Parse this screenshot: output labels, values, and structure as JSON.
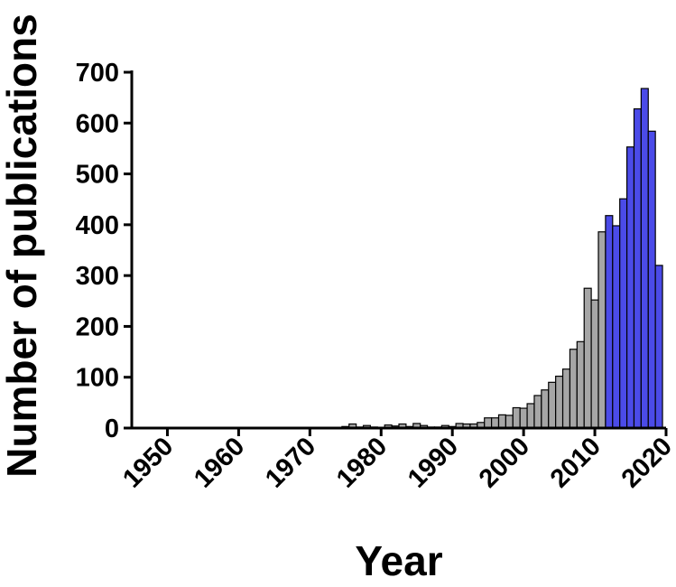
{
  "chart_data": {
    "type": "bar",
    "xlabel": "Year",
    "ylabel": "Number of publications",
    "xlim": [
      1945,
      2020
    ],
    "ylim": [
      0,
      700
    ],
    "x_ticks": [
      "1950",
      "1960",
      "1970",
      "1980",
      "1990",
      "2000",
      "2010",
      "2020"
    ],
    "y_ticks": [
      "0",
      "100",
      "200",
      "300",
      "400",
      "500",
      "600",
      "700"
    ],
    "grid": false,
    "legend": "none",
    "colors": {
      "gray": "#a6a6a6",
      "blue": "#4b4be8",
      "outline": "#000000"
    },
    "highlight_from_year": 2012,
    "x": [
      1975,
      1976,
      1977,
      1978,
      1979,
      1980,
      1981,
      1982,
      1983,
      1984,
      1985,
      1986,
      1987,
      1988,
      1989,
      1990,
      1991,
      1992,
      1993,
      1994,
      1995,
      1996,
      1997,
      1998,
      1999,
      2000,
      2001,
      2002,
      2003,
      2004,
      2005,
      2006,
      2007,
      2008,
      2009,
      2010,
      2011,
      2012,
      2013,
      2014,
      2015,
      2016,
      2017,
      2018,
      2019
    ],
    "values": [
      3,
      8,
      2,
      5,
      2,
      1,
      6,
      4,
      8,
      3,
      9,
      5,
      2,
      2,
      5,
      3,
      9,
      8,
      8,
      11,
      20,
      20,
      26,
      25,
      40,
      39,
      48,
      64,
      75,
      90,
      102,
      116,
      155,
      170,
      275,
      252,
      386,
      418,
      398,
      451,
      553,
      628,
      668,
      584,
      320
    ]
  }
}
